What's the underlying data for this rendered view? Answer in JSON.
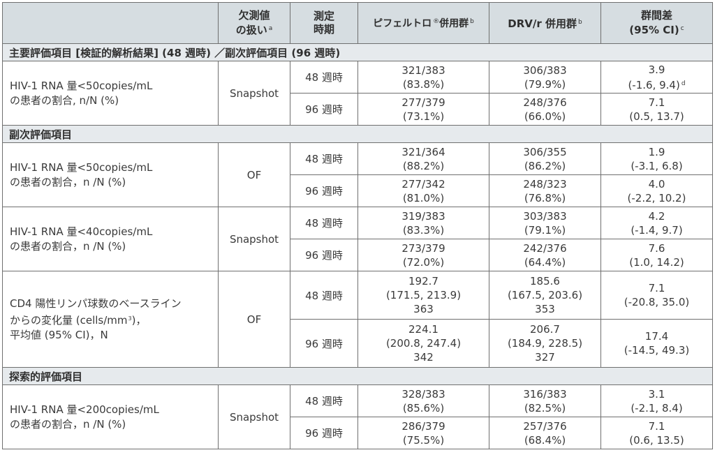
{
  "header": {
    "missing": {
      "l1": "欠測値",
      "l2": "の扱い",
      "sup": "a"
    },
    "timing": {
      "l1": "測定",
      "l2": "時期"
    },
    "g1": {
      "text": "ピフェルトロ",
      "reg": "®",
      "rest": "併用群",
      "sup": "b"
    },
    "g2": {
      "text": "DRV/r 併用群",
      "sup": "b"
    },
    "diff": {
      "l1": "群間差",
      "l2": "(95% CI)",
      "sup": "c"
    }
  },
  "sections": [
    {
      "title": "主要評価項目 [検証的解析結果] (48 週時) ／副次評価項目 (96 週時)",
      "rows": [
        {
          "item": [
            "HIV-1 RNA 量<50copies/mL",
            "の患者の割合, n/N (%)"
          ],
          "method": "Snapshot",
          "times": [
            {
              "time": "48 週時",
              "g1": [
                "321/383",
                "(83.8%)"
              ],
              "g2": [
                "306/383",
                "(79.9%)"
              ],
              "diff": [
                "3.9",
                "(-1.6, 9.4)"
              ],
              "diff_sup": "d"
            },
            {
              "time": "96 週時",
              "g1": [
                "277/379",
                "(73.1%)"
              ],
              "g2": [
                "248/376",
                "(66.0%)"
              ],
              "diff": [
                "7.1",
                "(0.5, 13.7)"
              ]
            }
          ]
        }
      ]
    },
    {
      "title": "副次評価項目",
      "rows": [
        {
          "item": [
            "HIV-1 RNA 量<50copies/mL",
            "の患者の割合，n /N (%)"
          ],
          "method": "OF",
          "times": [
            {
              "time": "48 週時",
              "g1": [
                "321/364",
                "(88.2%)"
              ],
              "g2": [
                "306/355",
                "(86.2%)"
              ],
              "diff": [
                "1.9",
                "(-3.1, 6.8)"
              ]
            },
            {
              "time": "96 週時",
              "g1": [
                "277/342",
                "(81.0%)"
              ],
              "g2": [
                "248/323",
                "(76.8%)"
              ],
              "diff": [
                "4.0",
                "(-2.2, 10.2)"
              ]
            }
          ]
        },
        {
          "item": [
            "HIV-1 RNA 量<40copies/mL",
            "の患者の割合，n /N (%)"
          ],
          "method": "Snapshot",
          "times": [
            {
              "time": "48 週時",
              "g1": [
                "319/383",
                "(83.3%)"
              ],
              "g2": [
                "303/383",
                "(79.1%)"
              ],
              "diff": [
                "4.2",
                "(-1.4, 9.7)"
              ]
            },
            {
              "time": "96 週時",
              "g1": [
                "273/379",
                "(72.0%)"
              ],
              "g2": [
                "242/376",
                "(64.4%)"
              ],
              "diff": [
                "7.6",
                "(1.0, 14.2)"
              ]
            }
          ]
        },
        {
          "item": [
            "CD4 陽性リンパ球数のベースライン",
            "からの変化量 (cells/mm",
            "3",
            ")，",
            "平均値 (95% CI)，N"
          ],
          "method": "OF",
          "times": [
            {
              "time": "48 週時",
              "g1": [
                "192.7",
                "(171.5, 213.9)",
                "363"
              ],
              "g2": [
                "185.6",
                "(167.5, 203.6)",
                "353"
              ],
              "diff": [
                "7.1",
                "(-20.8, 35.0)"
              ]
            },
            {
              "time": "96 週時",
              "g1": [
                "224.1",
                "(200.8, 247.4)",
                "342"
              ],
              "g2": [
                "206.7",
                "(184.9, 228.5)",
                "327"
              ],
              "diff": [
                "17.4",
                "(-14.5, 49.3)"
              ]
            }
          ]
        }
      ]
    },
    {
      "title": "探索的評価項目",
      "rows": [
        {
          "item": [
            "HIV-1 RNA 量<200copies/mL",
            "の患者の割合，n /N (%)"
          ],
          "method": "Snapshot",
          "times": [
            {
              "time": "48 週時",
              "g1": [
                "328/383",
                "(85.6%)"
              ],
              "g2": [
                "316/383",
                "(82.5%)"
              ],
              "diff": [
                "3.1",
                "(-2.1, 8.4)"
              ]
            },
            {
              "time": "96 週時",
              "g1": [
                "286/379",
                "(75.5%)"
              ],
              "g2": [
                "257/376",
                "(68.4%)"
              ],
              "diff": [
                "7.1",
                "(0.6, 13.5)"
              ]
            }
          ]
        }
      ]
    }
  ]
}
